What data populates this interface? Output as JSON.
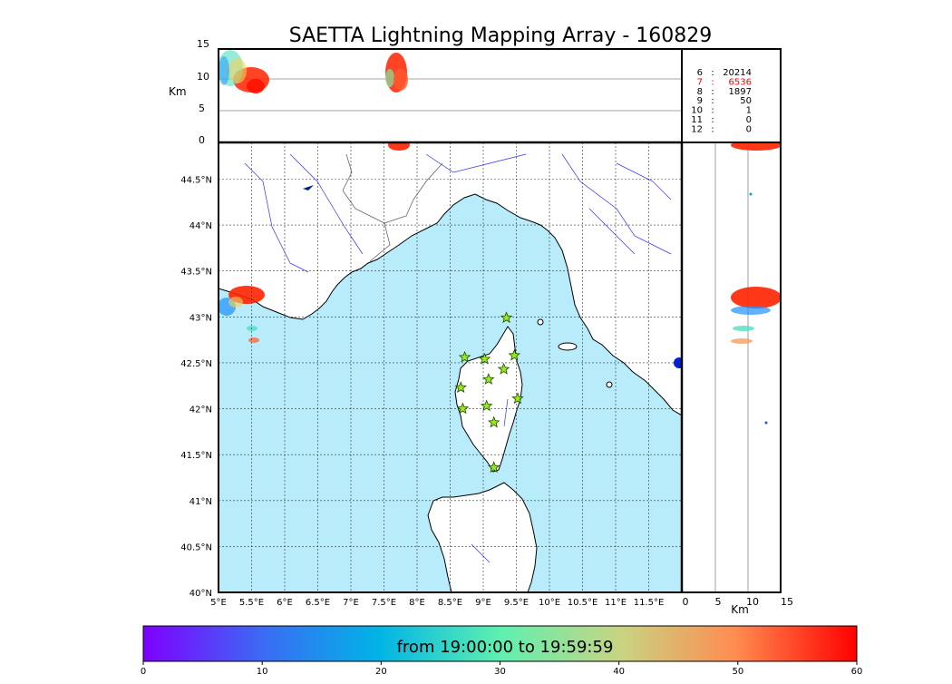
{
  "title": "SAETTA Lightning Mapping Array - 160829",
  "top_panel": {
    "ylabel": "Km",
    "yticks": [
      "15",
      "10",
      "5",
      "0"
    ]
  },
  "right_panel": {
    "xlabel": "Km",
    "xticks": [
      "0",
      "5",
      "10",
      "15"
    ]
  },
  "map": {
    "lat_labels": [
      "44.5°N",
      "44°N",
      "43.5°N",
      "43°N",
      "42.5°N",
      "42°N",
      "41.5°N",
      "41°N",
      "40.5°N",
      "40°N"
    ],
    "lon_labels": [
      "5°E",
      "5.5°E",
      "6°E",
      "6.5°E",
      "7°E",
      "7.5°E",
      "8°E",
      "8.5°E",
      "9°E",
      "9.5°E",
      "10°E",
      "10.5°E",
      "11°E",
      "11.5°E"
    ],
    "sea_color": "#b8ecfa",
    "stations": [
      {
        "lon": 9.35,
        "lat": 42.99
      },
      {
        "lon": 8.72,
        "lat": 42.56
      },
      {
        "lon": 9.02,
        "lat": 42.54
      },
      {
        "lon": 9.47,
        "lat": 42.58
      },
      {
        "lon": 9.31,
        "lat": 42.43
      },
      {
        "lon": 9.08,
        "lat": 42.32
      },
      {
        "lon": 8.66,
        "lat": 42.23
      },
      {
        "lon": 9.52,
        "lat": 42.11
      },
      {
        "lon": 9.05,
        "lat": 42.03
      },
      {
        "lon": 8.69,
        "lat": 42.0
      },
      {
        "lon": 9.16,
        "lat": 41.85
      },
      {
        "lon": 9.16,
        "lat": 41.36
      }
    ]
  },
  "station_counts": [
    {
      "stations": "6",
      "sep": ":",
      "count": "20214",
      "color": "#000000"
    },
    {
      "stations": "7",
      "sep": ":",
      "count": "6536",
      "color": "#ff0000"
    },
    {
      "stations": "8",
      "sep": ":",
      "count": "1897",
      "color": "#000000"
    },
    {
      "stations": "9",
      "sep": ":",
      "count": "50",
      "color": "#000000"
    },
    {
      "stations": "10",
      "sep": ":",
      "count": "1",
      "color": "#000000"
    },
    {
      "stations": "11",
      "sep": ":",
      "count": "0",
      "color": "#000000"
    },
    {
      "stations": "12",
      "sep": ":",
      "count": "0",
      "color": "#000000"
    }
  ],
  "colorbar": {
    "label": "from 19:00:00 to 19:59:59",
    "ticks": [
      "0",
      "10",
      "20",
      "30",
      "40",
      "50",
      "60"
    ],
    "range": [
      0,
      60
    ]
  }
}
